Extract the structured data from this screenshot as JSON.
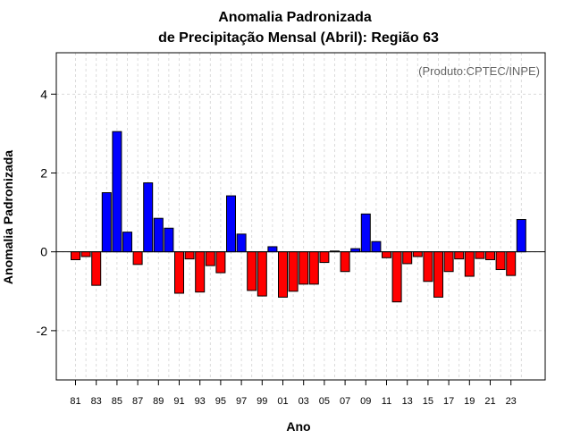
{
  "chart_data": {
    "type": "bar",
    "title_line1": "Anomalia Padronizada",
    "title_line2": "de Precipitação Mensal (Abril): Região 63",
    "source_note": "(Produto:CPTEC/INPE)",
    "xlabel": "Ano",
    "ylabel": "Anomalia Padronizada",
    "ylim": [
      -3.25,
      5.05
    ],
    "yticks": [
      -2,
      0,
      2,
      4
    ],
    "ytick_labels": [
      "-2",
      "0",
      "2",
      "4"
    ],
    "xtick_labels": [
      "81",
      "83",
      "85",
      "87",
      "89",
      "91",
      "93",
      "95",
      "97",
      "99",
      "01",
      "03",
      "05",
      "07",
      "09",
      "11",
      "13",
      "15",
      "17",
      "19",
      "21",
      "23"
    ],
    "grid": true,
    "positive_color": "#0000ff",
    "negative_color": "#ff0000",
    "categories": [
      "1981",
      "1982",
      "1983",
      "1984",
      "1985",
      "1986",
      "1987",
      "1988",
      "1989",
      "1990",
      "1991",
      "1992",
      "1993",
      "1994",
      "1995",
      "1996",
      "1997",
      "1998",
      "1999",
      "2000",
      "2001",
      "2002",
      "2003",
      "2004",
      "2005",
      "2006",
      "2007",
      "2008",
      "2009",
      "2010",
      "2011",
      "2012",
      "2013",
      "2014",
      "2015",
      "2016",
      "2017",
      "2018",
      "2019",
      "2020",
      "2021",
      "2022",
      "2023",
      "2024"
    ],
    "values": [
      -0.2,
      -0.12,
      -0.85,
      1.5,
      3.05,
      0.5,
      -0.32,
      1.75,
      0.85,
      0.6,
      -1.05,
      -0.18,
      -1.02,
      -0.35,
      -0.53,
      1.42,
      0.45,
      -0.98,
      -1.12,
      0.13,
      -1.15,
      -1.0,
      -0.82,
      -0.82,
      -0.27,
      0.02,
      -0.5,
      0.08,
      0.96,
      0.26,
      -0.15,
      -1.27,
      -0.3,
      -0.12,
      -0.75,
      -1.15,
      -0.5,
      -0.18,
      -0.62,
      -0.17,
      -0.2,
      -0.45,
      -0.6,
      0.82
    ]
  }
}
